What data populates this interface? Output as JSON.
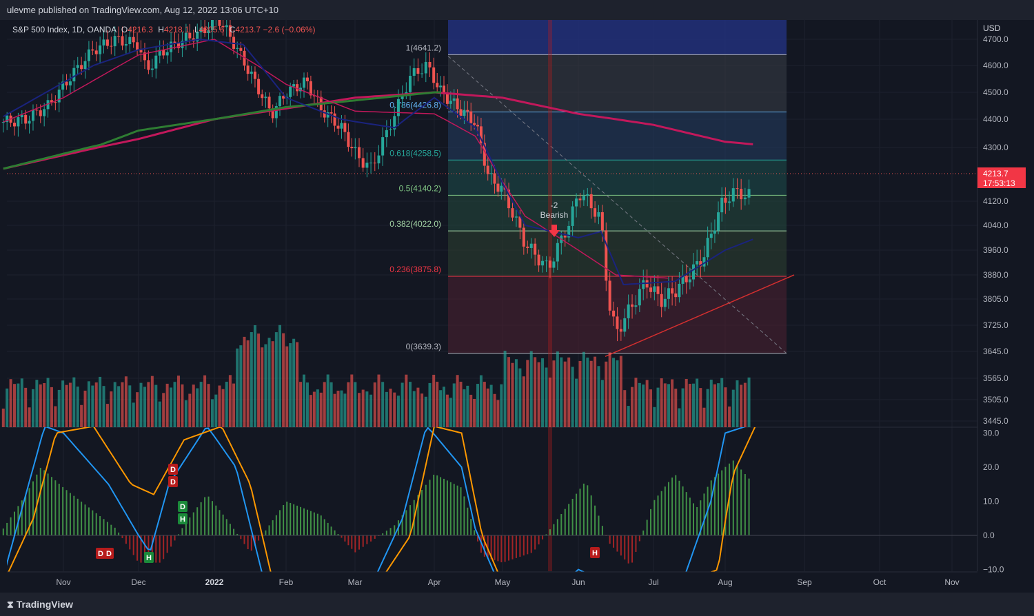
{
  "header": {
    "published": "ulevme published on TradingView.com, Aug 12, 2022 13:06 UTC+10"
  },
  "legend": {
    "symbol": "S&P 500 Index, 1D, OANDA",
    "o_label": "O",
    "o": "4216.3",
    "h_label": "H",
    "h": "4218.1",
    "l_label": "L",
    "l": "4205.6",
    "c_label": "C",
    "c": "4213.7",
    "change": "−2.6 (−0.06%)"
  },
  "footer": {
    "brand": "TradingView"
  },
  "chart_data": {
    "type": "candlestick",
    "currency": "USD",
    "last_price": {
      "value": "4213.7",
      "countdown": "17:53:13",
      "color": "#f23645"
    },
    "price_ticks": [
      "4700.0",
      "4600.0",
      "4500.0",
      "4400.0",
      "4300.0",
      "4213.7",
      "4120.0",
      "4040.0",
      "3960.0",
      "3880.0",
      "3805.0",
      "3725.0",
      "3645.0",
      "3565.0",
      "3505.0",
      "3445.0"
    ],
    "oscillator_ticks": [
      "30.0",
      "20.0",
      "10.0",
      "0.0",
      "−10.0"
    ],
    "time_ticks": [
      "Nov",
      "Dec",
      "2022",
      "Feb",
      "Mar",
      "Apr",
      "May",
      "Jun",
      "Jul",
      "Aug",
      "Sep",
      "Oct",
      "Nov"
    ],
    "fib_levels": [
      {
        "ratio": "1",
        "price": 4641.2,
        "label": "1(4641.2)",
        "color": "#b2b5be"
      },
      {
        "ratio": "0.786",
        "price": 4426.8,
        "label": "0.786(4426.8)",
        "color": "#64b5f6"
      },
      {
        "ratio": "0.618",
        "price": 4258.5,
        "label": "0.618(4258.5)",
        "color": "#26a69a"
      },
      {
        "ratio": "0.5",
        "price": 4140.2,
        "label": "0.5(4140.2)",
        "color": "#81c784"
      },
      {
        "ratio": "0.382",
        "price": 4022.0,
        "label": "0.382(4022.0)",
        "color": "#a5d6a7"
      },
      {
        "ratio": "0.236",
        "price": 3875.8,
        "label": "0.236(3875.8)",
        "color": "#f23645"
      },
      {
        "ratio": "0",
        "price": 3639.3,
        "label": "0(3639.3)",
        "color": "#b2b5be"
      }
    ],
    "annotations": {
      "signal": "-2",
      "signal_text": "Bearish",
      "badges": [
        "D",
        "D",
        "D",
        "D",
        "H",
        "D",
        "H",
        "H"
      ]
    },
    "colors": {
      "up": "#26a69a",
      "down": "#ef5350",
      "ma_red": "#c2185b",
      "ma_green": "#2e7d32",
      "ma_blue": "#1a237e",
      "osc_blue": "#2196f3",
      "osc_orange": "#ff9800",
      "background": "#131722"
    }
  }
}
